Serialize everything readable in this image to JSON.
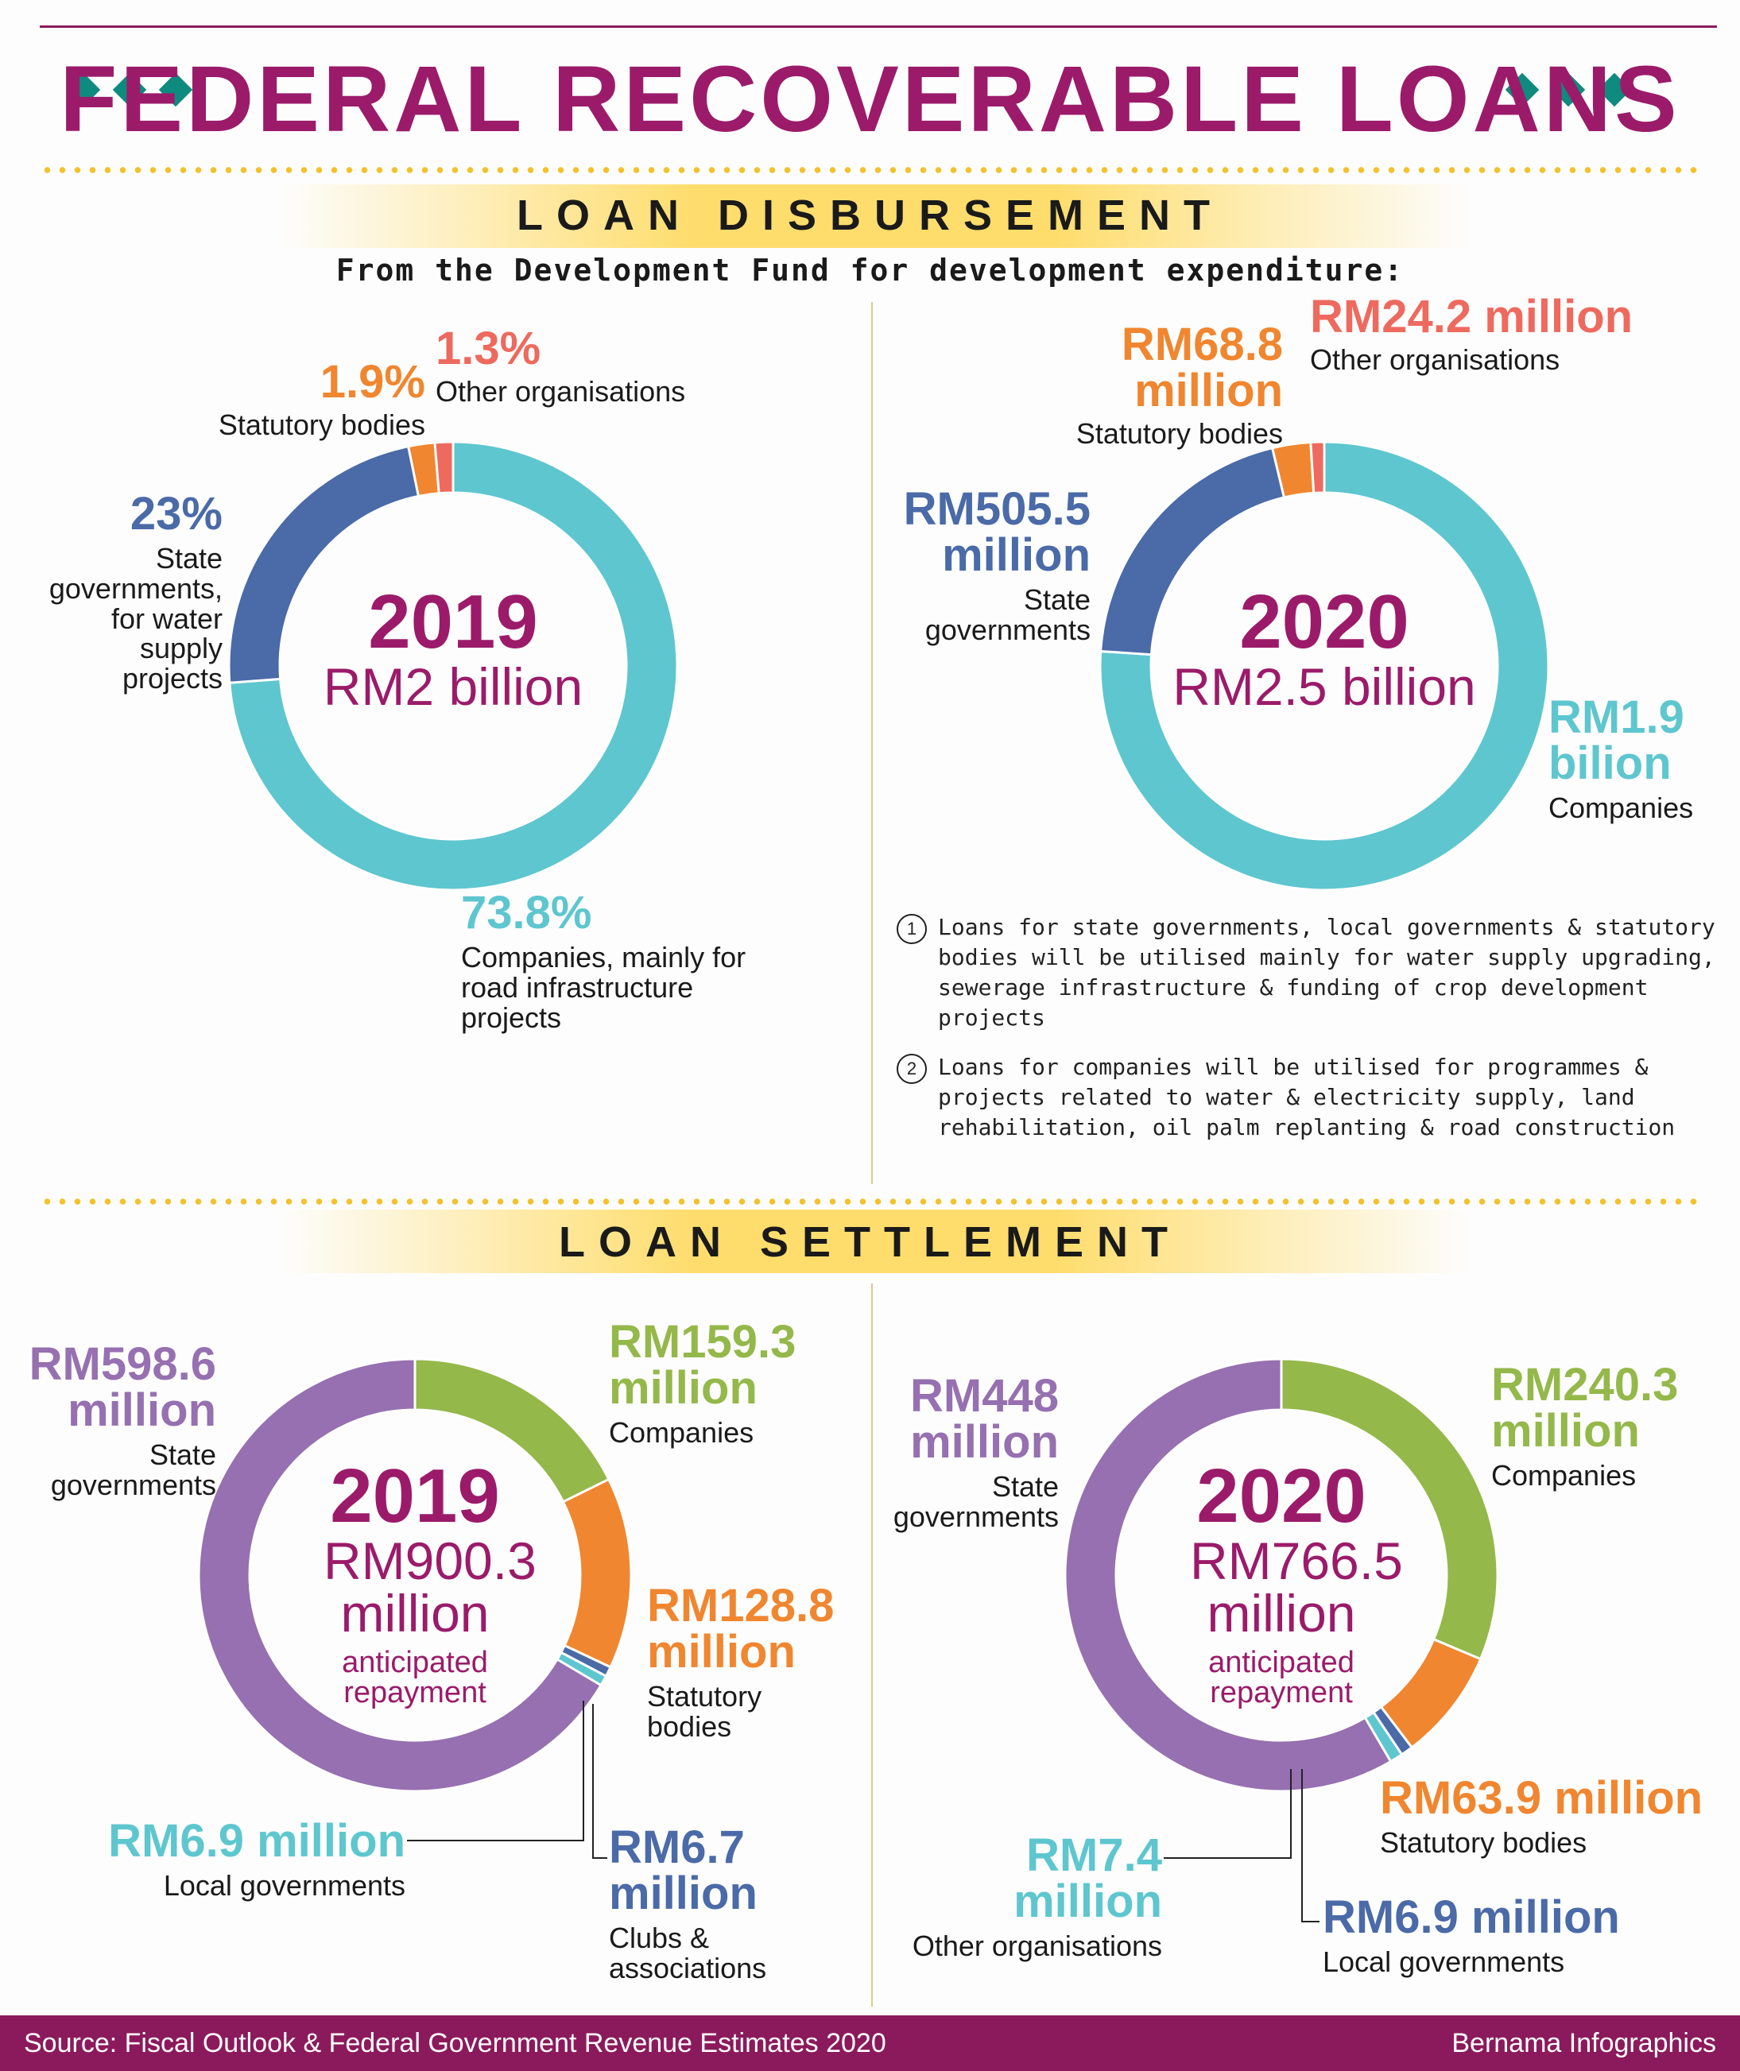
{
  "title": "FEDERAL RECOVERABLE LOANS",
  "sections": {
    "disbursement": "LOAN  DISBURSEMENT",
    "settlement": "LOAN SETTLEMENT"
  },
  "subtitle": "From the Development Fund for development expenditure:",
  "notes": [
    {
      "num": "1",
      "text": "Loans for state governments, local governments & statutory bodies will be utilised mainly for water supply upgrading, sewerage infrastructure & funding of crop development projects"
    },
    {
      "num": "2",
      "text": "Loans for companies will be utilised for programmes & projects related to water & electricity supply, land rehabilitation, oil palm replanting & road construction"
    }
  ],
  "footer": {
    "source": "Source: Fiscal Outlook & Federal Government Revenue Estimates 2020",
    "credit": "Bernama Infographics"
  },
  "colors": {
    "teal": "#5ec6cf",
    "blue": "#4a6aa8",
    "orange": "#f0862f",
    "coral": "#ee6a5e",
    "purple": "#9670b0",
    "green": "#94b84a",
    "magenta": "#9b1b6a"
  },
  "chart_data": [
    {
      "type": "pie",
      "variant": "donut",
      "center": {
        "year": "2019",
        "amount": "RM2 billion"
      },
      "slices": [
        {
          "value": 73.8,
          "color": "#5ec6cf",
          "label_value": "73.8%",
          "label_desc": "Companies, mainly for road infrastructure projects"
        },
        {
          "value": 23,
          "color": "#4a6aa8",
          "label_value": "23%",
          "label_desc": "State governments, for water supply projects"
        },
        {
          "value": 1.9,
          "color": "#f0862f",
          "label_value": "1.9%",
          "label_desc": "Statutory bodies"
        },
        {
          "value": 1.3,
          "color": "#ee6a5e",
          "label_value": "1.3%",
          "label_desc": "Other organisations"
        }
      ]
    },
    {
      "type": "pie",
      "variant": "donut",
      "center": {
        "year": "2020",
        "amount": "RM2.5 billion"
      },
      "slices": [
        {
          "value": 1900,
          "color": "#5ec6cf",
          "label_value": "RM1.9 bilion",
          "label_desc": "Companies"
        },
        {
          "value": 505.5,
          "color": "#4a6aa8",
          "label_value": "RM505.5 million",
          "label_desc": "State governments"
        },
        {
          "value": 68.8,
          "color": "#f0862f",
          "label_value": "RM68.8 million",
          "label_desc": "Statutory bodies"
        },
        {
          "value": 24.2,
          "color": "#ee6a5e",
          "label_value": "RM24.2 million",
          "label_desc": "Other organisations"
        }
      ]
    },
    {
      "type": "pie",
      "variant": "donut",
      "center": {
        "year": "2019",
        "amount": "RM900.3 million",
        "note": "anticipated repayment"
      },
      "slices": [
        {
          "value": 159.3,
          "color": "#94b84a",
          "label_value": "RM159.3 million",
          "label_desc": "Companies"
        },
        {
          "value": 128.8,
          "color": "#f0862f",
          "label_value": "RM128.8 million",
          "label_desc": "Statutory bodies"
        },
        {
          "value": 6.7,
          "color": "#4a6aa8",
          "label_value": "RM6.7 million",
          "label_desc": "Clubs & associations"
        },
        {
          "value": 6.9,
          "color": "#5ec6cf",
          "label_value": "RM6.9 million",
          "label_desc": "Local governments"
        },
        {
          "value": 598.6,
          "color": "#9670b0",
          "label_value": "RM598.6 million",
          "label_desc": "State governments"
        }
      ]
    },
    {
      "type": "pie",
      "variant": "donut",
      "center": {
        "year": "2020",
        "amount": "RM766.5 million",
        "note": "anticipated repayment"
      },
      "slices": [
        {
          "value": 240.3,
          "color": "#94b84a",
          "label_value": "RM240.3 million",
          "label_desc": "Companies"
        },
        {
          "value": 63.9,
          "color": "#f0862f",
          "label_value": "RM63.9 million",
          "label_desc": "Statutory bodies"
        },
        {
          "value": 6.9,
          "color": "#4a6aa8",
          "label_value": "RM6.9 million",
          "label_desc": "Local governments"
        },
        {
          "value": 7.4,
          "color": "#5ec6cf",
          "label_value": "RM7.4 million",
          "label_desc": "Other organisations"
        },
        {
          "value": 448,
          "color": "#9670b0",
          "label_value": "RM448 million",
          "label_desc": "State governments"
        }
      ]
    }
  ]
}
